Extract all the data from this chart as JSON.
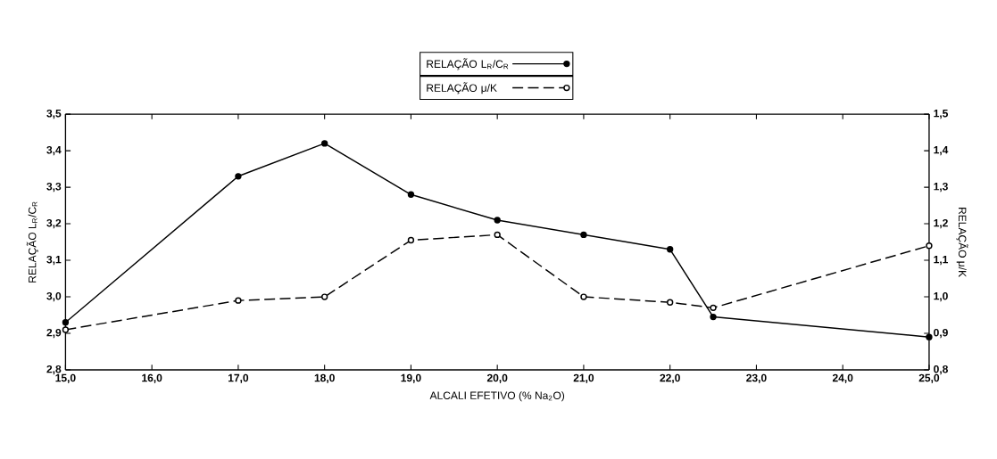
{
  "chart_data": {
    "type": "line",
    "xlabel": "ALCALI EFETIVO (% Na$_{2}$O)",
    "ylabel": "RELAÇÃO L$_{R}$/C$_{R}$",
    "y2label": "RELAÇÃO μ/K",
    "x": [
      15,
      17,
      18,
      19,
      20,
      21,
      22,
      22.5,
      25
    ],
    "series": [
      {
        "name": "RELAÇÃO L$_{R}$/C$_{R}$",
        "color": "#000000",
        "line_style": "solid",
        "marker": "circle",
        "values": [
          2.93,
          3.33,
          3.42,
          3.28,
          3.21,
          3.17,
          3.13,
          2.945,
          2.89
        ]
      },
      {
        "name": "RELAÇÃO μ/K",
        "color": "#000000",
        "line_style": "dashed",
        "marker": "circle",
        "axis": "y2",
        "values": [
          0.91,
          0.99,
          1.0,
          1.155,
          1.17,
          1.0,
          0.985,
          0.97,
          1.14
        ]
      }
    ],
    "xlim": [
      15,
      25
    ],
    "xticks": [
      {
        "value": 15,
        "label": "15,0"
      },
      {
        "value": 16,
        "label": "16,0"
      },
      {
        "value": 17,
        "label": "17,0"
      },
      {
        "value": 18,
        "label": "18,0"
      },
      {
        "value": 19,
        "label": "19,0"
      },
      {
        "value": 20,
        "label": "20,0"
      },
      {
        "value": 21,
        "label": "21,0"
      },
      {
        "value": 22,
        "label": "22,0"
      },
      {
        "value": 23,
        "label": "23,0"
      },
      {
        "value": 24,
        "label": "24,0"
      },
      {
        "value": 25,
        "label": "25,0"
      }
    ],
    "ylim": [
      2.8,
      3.5
    ],
    "yticks": [
      {
        "value": 2.8,
        "label": "2,8"
      },
      {
        "value": 2.9,
        "label": "2,9"
      },
      {
        "value": 3.0,
        "label": "3,0"
      },
      {
        "value": 3.1,
        "label": "3,1"
      },
      {
        "value": 3.2,
        "label": "3,2"
      },
      {
        "value": 3.3,
        "label": "3,3"
      },
      {
        "value": 3.4,
        "label": "3,4"
      },
      {
        "value": 3.5,
        "label": "3,5"
      }
    ],
    "y2lim": [
      0.8,
      1.5
    ],
    "y2ticks": [
      {
        "value": 0.8,
        "label": "0,8"
      },
      {
        "value": 0.9,
        "label": "0,9"
      },
      {
        "value": 1.0,
        "label": "1,0"
      },
      {
        "value": 1.1,
        "label": "1,1"
      },
      {
        "value": 1.2,
        "label": "1,2"
      },
      {
        "value": 1.3,
        "label": "1,3"
      },
      {
        "value": 1.4,
        "label": "1,4"
      },
      {
        "value": 1.5,
        "label": "1,5"
      }
    ],
    "grid": false,
    "legend": "top"
  }
}
